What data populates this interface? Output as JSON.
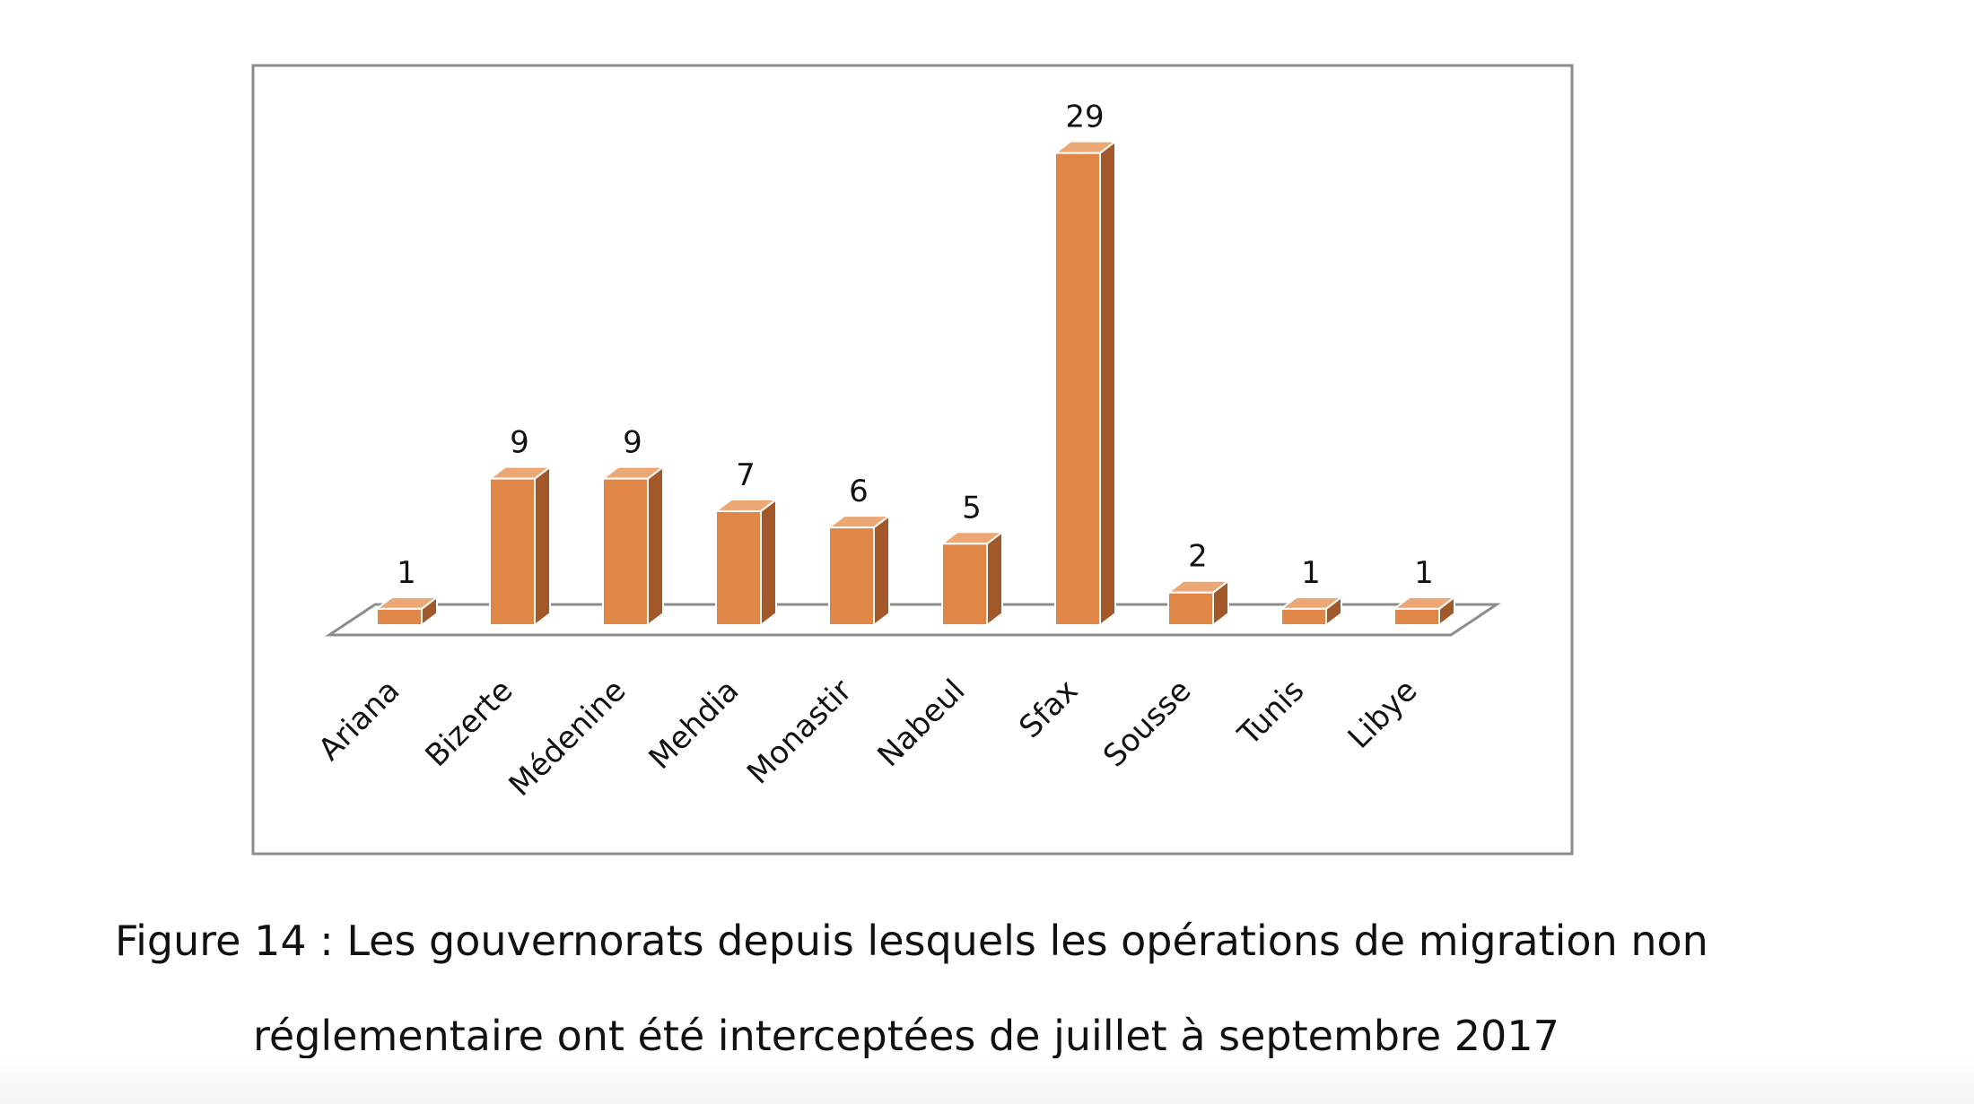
{
  "colors": {
    "bar_front": "#E08747",
    "bar_top": "#EBA875",
    "bar_side": "#A3582A",
    "bar_edge": "#ffffff",
    "frame": "#8c8c8c",
    "floor": "#8c8c8c",
    "text": "#111111"
  },
  "chart_data": {
    "type": "bar",
    "style": "3d-column",
    "title": "",
    "xlabel": "",
    "ylabel": "",
    "categories": [
      "Ariana",
      "Bizerte",
      "Médenine",
      "Mehdia",
      "Monastir",
      "Nabeul",
      "Sfax",
      "Sousse",
      "Tunis",
      "Libye"
    ],
    "values": [
      1,
      9,
      9,
      7,
      6,
      5,
      29,
      2,
      1,
      1
    ],
    "ylim": [
      0,
      30
    ],
    "grid": false,
    "legend": "none",
    "data_labels": [
      "1",
      "9",
      "9",
      "7",
      "6",
      "5",
      "29",
      "2",
      "1",
      "1"
    ]
  },
  "caption": {
    "line1": "Figure 14 : Les gouvernorats depuis lesquels les opérations de migration non",
    "line2": "réglementaire ont été interceptées de juillet à septembre 2017"
  }
}
